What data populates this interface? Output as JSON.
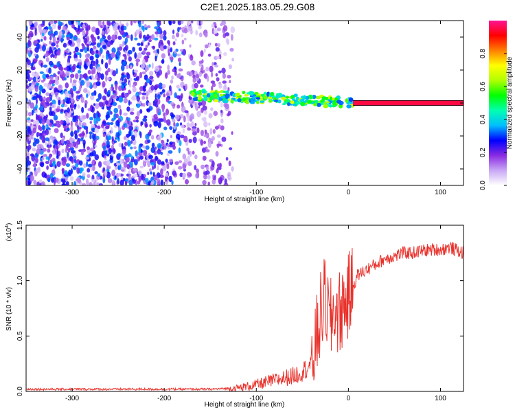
{
  "title": "C2E1.2025.183.05.29.G08",
  "chart_data": [
    {
      "type": "heatmap",
      "title": "C2E1.2025.183.05.29.G08",
      "xlabel": "Height of straight line (km)",
      "ylabel": "Frequency (Hz)",
      "xlim": [
        -350,
        125
      ],
      "ylim": [
        -50,
        50
      ],
      "xticks": [
        -300,
        -200,
        -100,
        0,
        100
      ],
      "yticks": [
        -40,
        -20,
        0,
        20,
        40
      ],
      "colorbar": {
        "label": "Normalized spectral amplitude",
        "range": [
          0,
          1
        ],
        "ticks": [
          "0.0",
          "0.2",
          "0.4",
          "0.6",
          "0.8"
        ],
        "colors": [
          "#ffffff",
          "#c9a8f5",
          "#8a2be2",
          "#0000ff",
          "#00bfff",
          "#00ffb0",
          "#00ff00",
          "#b0ff00",
          "#ffff00",
          "#ff8000",
          "#ff0000",
          "#ff1493"
        ]
      },
      "description_of_values": [
        {
          "x_range": [
            -350,
            -130
          ],
          "freq_range": [
            -50,
            50
          ],
          "amplitude": 0.1
        },
        {
          "x_range": [
            -130,
            5
          ],
          "freq_center_start": 5,
          "freq_center_end": 0,
          "amplitude": 0.5
        },
        {
          "x_range": [
            5,
            125
          ],
          "freq": 0,
          "amplitude": 0.9
        }
      ]
    },
    {
      "type": "line",
      "xlabel": "Height of straight line (km)",
      "ylabel": "SNR (10 * v/v)",
      "y_multiplier": "(x10",
      "y_multiplier_exp": "4",
      "xlim": [
        -350,
        125
      ],
      "ylim": [
        0,
        1.5
      ],
      "xticks": [
        -300,
        -200,
        -100,
        0,
        100
      ],
      "yticks": [
        "0.0",
        "0.5",
        "1.0",
        "1.5"
      ],
      "series": [
        {
          "color": "#e8322c",
          "x": [
            -350,
            -300,
            -250,
            -200,
            -150,
            -120,
            -100,
            -80,
            -60,
            -50,
            -40,
            -35,
            -30,
            -25,
            -20,
            -15,
            -10,
            -5,
            0,
            5,
            10,
            20,
            30,
            40,
            50,
            60,
            70,
            80,
            90,
            100,
            110,
            125
          ],
          "y": [
            0.02,
            0.02,
            0.02,
            0.02,
            0.02,
            0.03,
            0.06,
            0.1,
            0.14,
            0.18,
            0.25,
            0.45,
            0.7,
            0.85,
            0.6,
            0.75,
            0.7,
            0.8,
            0.85,
            0.95,
            1.05,
            1.1,
            1.15,
            1.2,
            1.22,
            1.25,
            1.25,
            1.27,
            1.28,
            1.28,
            1.3,
            1.25
          ]
        }
      ]
    }
  ]
}
